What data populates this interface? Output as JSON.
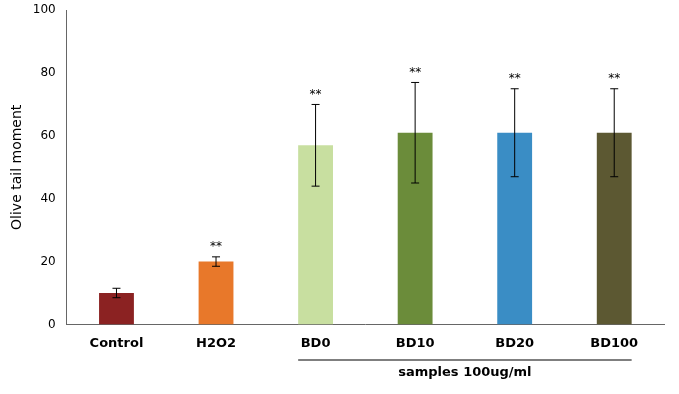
{
  "chart_data": {
    "type": "bar",
    "categories": [
      "Control",
      "H2O2",
      "BD0",
      "BD10",
      "BD20",
      "BD100"
    ],
    "values": [
      10,
      20,
      57,
      61,
      61,
      61
    ],
    "errors": [
      1.5,
      1.5,
      13,
      16,
      14,
      14
    ],
    "colors": [
      "#8B2222",
      "#E8782A",
      "#C8DFA0",
      "#6B8C3A",
      "#3A8DC5",
      "#5C5832"
    ],
    "ylabel": "Olive tail moment",
    "significance": [
      null,
      "**",
      "**",
      "**",
      "**",
      "**"
    ],
    "annotations": [
      {
        "text": "samples 100ug/ml",
        "from": "BD0",
        "to": "BD100"
      }
    ],
    "ylim": [
      0,
      100
    ],
    "yticks": [
      0,
      20,
      40,
      60,
      80,
      100
    ],
    "grid": false
  }
}
